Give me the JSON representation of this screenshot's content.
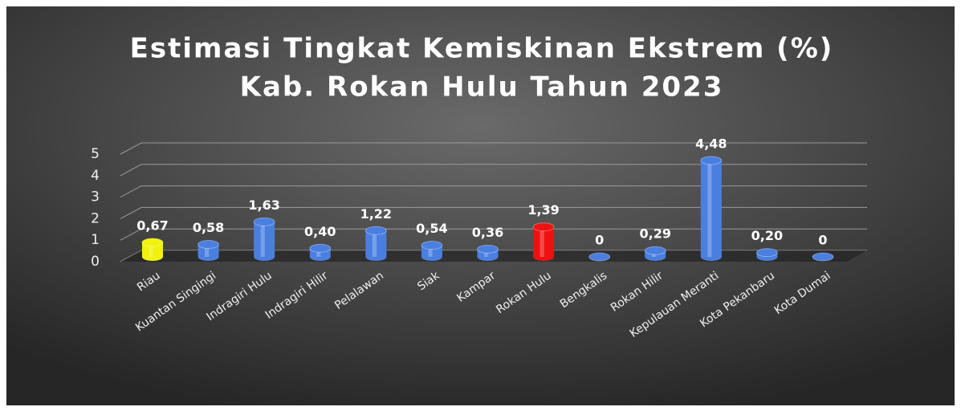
{
  "chart_data": {
    "type": "bar",
    "title": "Estimasi Tingkat Kemiskinan Ekstrem (%)",
    "subtitle": "Kab. Rokan Hulu Tahun 2023",
    "categories": [
      "Riau",
      "Kuantan Singingi",
      "Indragiri Hulu",
      "Indragiri Hilir",
      "Pelalawan",
      "Siak",
      "Kampar",
      "Rokan Hulu",
      "Bengkalis",
      "Rokan Hilir",
      "Kepulauan Meranti",
      "Kota Pekanbaru",
      "Kota Dumai"
    ],
    "values": [
      0.67,
      0.58,
      1.63,
      0.4,
      1.22,
      0.54,
      0.36,
      1.39,
      0,
      0.29,
      4.48,
      0.2,
      0
    ],
    "value_labels": [
      "0,67",
      "0,58",
      "1,63",
      "0,40",
      "1,22",
      "0,54",
      "0,36",
      "1,39",
      "0",
      "0,29",
      "4,48",
      "0,20",
      "0"
    ],
    "colors": [
      "#f2f20a",
      "#4a7fe0",
      "#4a7fe0",
      "#4a7fe0",
      "#4a7fe0",
      "#4a7fe0",
      "#4a7fe0",
      "#ee1111",
      "#4a7fe0",
      "#4a7fe0",
      "#4a7fe0",
      "#4a7fe0",
      "#4a7fe0"
    ],
    "ylim": [
      0,
      5
    ],
    "yticks": [
      0,
      1,
      2,
      3,
      4,
      5
    ],
    "grid": true
  }
}
